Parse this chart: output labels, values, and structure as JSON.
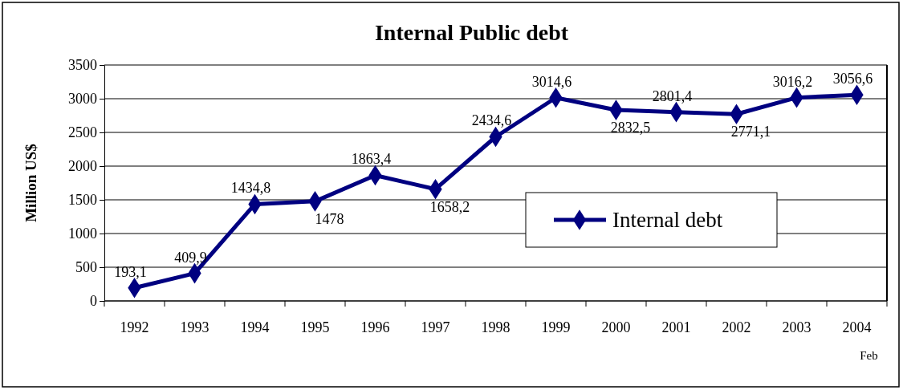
{
  "chart_data": {
    "type": "line",
    "title": "Internal Public debt",
    "ylabel": "Million US$",
    "categories": [
      "1992",
      "1993",
      "1994",
      "1995",
      "1996",
      "1997",
      "1998",
      "1999",
      "2000",
      "2001",
      "2002",
      "2003",
      "2004\nFeb"
    ],
    "series": [
      {
        "name": "Internal debt",
        "color": "#000080",
        "values": [
          193.1,
          409.9,
          1434.8,
          1478,
          1863.4,
          1658.2,
          2434.6,
          3014.6,
          2832.5,
          2801.4,
          2771.1,
          3016.2,
          3056.6
        ],
        "value_labels": [
          "193,1",
          "409,9",
          "1434,8",
          "1478",
          "1863,4",
          "1658,2",
          "2434,6",
          "3014,6",
          "2832,5",
          "2801,4",
          "2771,1",
          "3016,2",
          "3056,6"
        ]
      }
    ],
    "ylim": [
      0,
      3500
    ],
    "yticks": [
      0,
      500,
      1000,
      1500,
      2000,
      2500,
      3000,
      3500
    ],
    "grid": "y",
    "legend": "right",
    "marker": "diamond",
    "line_style": "solid"
  }
}
